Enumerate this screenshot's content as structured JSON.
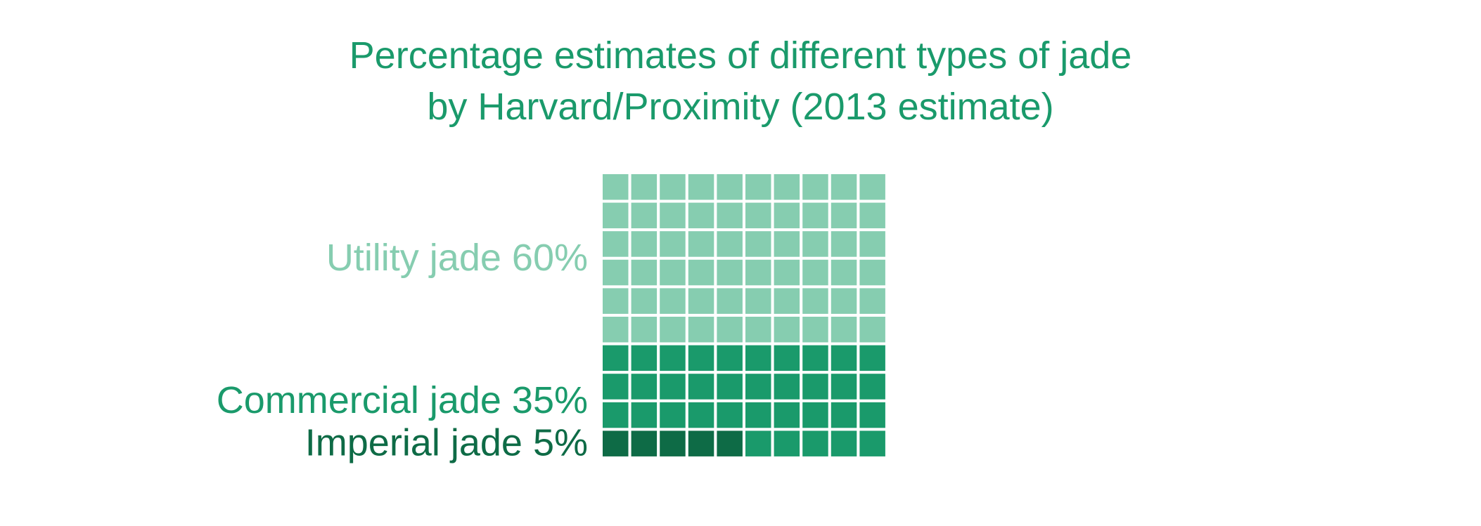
{
  "chart_data": {
    "type": "waffle",
    "title_lines": [
      "Percentage estimates of different types of jade",
      "by Harvard/Proximity (2013 estimate)"
    ],
    "grid": {
      "rows": 10,
      "cols": 10
    },
    "categories": [
      {
        "name": "Utility jade",
        "value": 60,
        "label": "Utility jade 60%",
        "color": "#86cdb0"
      },
      {
        "name": "Commercial jade",
        "value": 35,
        "label": "Commercial jade 35%",
        "color": "#1a9a6b"
      },
      {
        "name": "Imperial jade",
        "value": 5,
        "label": "Imperial jade 5%",
        "color": "#0e6b46"
      }
    ],
    "colors": {
      "title": "#1a9a6b",
      "background": "#ffffff"
    }
  }
}
